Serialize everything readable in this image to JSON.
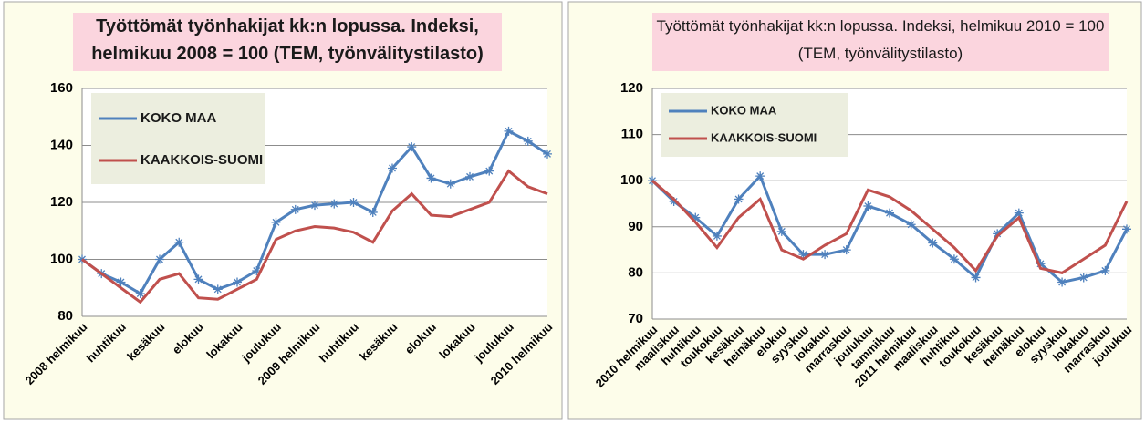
{
  "chart_data": [
    {
      "type": "line",
      "title": "Työttömät työnhakijat kk:n lopussa. Indeksi, helmikuu 2008 = 100 (TEM, työnvälitystilasto)",
      "categories": [
        "2008 helmikuu",
        null,
        "huhtikuu",
        null,
        "kesäkuu",
        null,
        "elokuu",
        null,
        "lokakuu",
        null,
        "joulukuu",
        null,
        "2009 helmikuu",
        null,
        "huhtikuu",
        null,
        "kesäkuu",
        null,
        "elokuu",
        null,
        "lokakuu",
        null,
        "joulukuu",
        null,
        "2010 helmikuu"
      ],
      "series": [
        {
          "name": "KOKO MAA",
          "color": "#4f81bd",
          "values": [
            100,
            95,
            92,
            88,
            100,
            106,
            93,
            89.5,
            92,
            96,
            113,
            117.5,
            119,
            119.5,
            120,
            116.5,
            132,
            139.5,
            128.5,
            126.5,
            129,
            131,
            145,
            141.5,
            137
          ]
        },
        {
          "name": "KAAKKOIS-SUOMI",
          "color": "#c0504d",
          "values": [
            100,
            95,
            90,
            85,
            93,
            95,
            86.5,
            86,
            89.5,
            93,
            107,
            110,
            111.5,
            111,
            109.5,
            106,
            117,
            123,
            115.5,
            115,
            117.5,
            120,
            131,
            125.5,
            123
          ]
        }
      ],
      "ylim": [
        80,
        160
      ],
      "yticks": [
        80,
        100,
        120,
        140,
        160
      ],
      "grid": true,
      "legend": "upper left"
    },
    {
      "type": "line",
      "title": "Työttömät työnhakijat kk:n lopussa. Indeksi, helmikuu 2010 = 100 (TEM, työnvälitystilasto)",
      "categories": [
        "2010 helmikuu",
        "maaliskuu",
        "huhtikuu",
        "toukokuu",
        "kesäkuu",
        "heinäkuu",
        "elokuu",
        "syyskuu",
        "lokakuu",
        "marraskuu",
        "joulukuu",
        "tammikuu",
        "2011 helmikuu",
        "maaliskuu",
        "huhtikuu",
        "toukokuu",
        "kesäkuu",
        "heinäkuu",
        "elokuu",
        "syyskuu",
        "lokakuu",
        "marraskuu",
        "joulukuu"
      ],
      "series": [
        {
          "name": "KOKO MAA",
          "color": "#4f81bd",
          "values": [
            100,
            95.5,
            92,
            88,
            96,
            101,
            89,
            84,
            84,
            85,
            94.5,
            93,
            90.5,
            86.5,
            83,
            79,
            88.5,
            93,
            82,
            78,
            79,
            80.5,
            89.5
          ]
        },
        {
          "name": "KAAKKOIS-SUOMI",
          "color": "#c0504d",
          "values": [
            100,
            96,
            91,
            85.5,
            92,
            96,
            85,
            83,
            86,
            88.5,
            98,
            96.5,
            93.5,
            89.5,
            85.5,
            80.5,
            88,
            92,
            81,
            80,
            83,
            86,
            95.5
          ]
        }
      ],
      "ylim": [
        70,
        120
      ],
      "yticks": [
        70,
        80,
        90,
        100,
        110,
        120
      ],
      "grid": true,
      "legend": "upper left"
    }
  ]
}
